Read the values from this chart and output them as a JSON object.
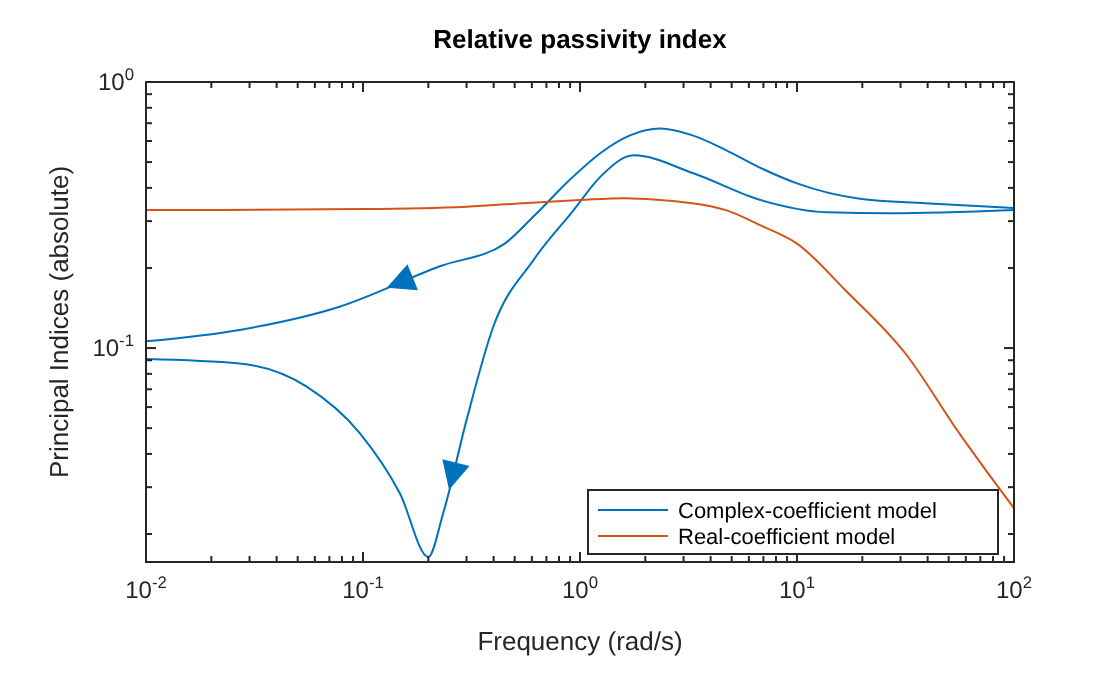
{
  "chart_data": {
    "type": "line",
    "title": "Relative passivity index",
    "xlabel": "Frequency (rad/s)",
    "ylabel": "Principal Indices (absolute)",
    "log": "xy",
    "grid": false,
    "legend": "bottom right",
    "line_style": "solid",
    "xlim": [
      0.01,
      100
    ],
    "ylim": [
      0.0157,
      1
    ],
    "xticks": [
      {
        "value": 0.01,
        "label": "10$^{-2}$"
      },
      {
        "value": 0.02,
        "label": null
      },
      {
        "value": 0.03,
        "label": null
      },
      {
        "value": 0.04,
        "label": null
      },
      {
        "value": 0.05,
        "label": null
      },
      {
        "value": 0.06,
        "label": null
      },
      {
        "value": 0.07,
        "label": null
      },
      {
        "value": 0.08,
        "label": null
      },
      {
        "value": 0.09,
        "label": null
      },
      {
        "value": 0.1,
        "label": "10$^{-1}$"
      },
      {
        "value": 0.2,
        "label": null
      },
      {
        "value": 0.3,
        "label": null
      },
      {
        "value": 0.4,
        "label": null
      },
      {
        "value": 0.5,
        "label": null
      },
      {
        "value": 0.6,
        "label": null
      },
      {
        "value": 0.7,
        "label": null
      },
      {
        "value": 0.8,
        "label": null
      },
      {
        "value": 0.9,
        "label": null
      },
      {
        "value": 1,
        "label": "10$^{0}$"
      },
      {
        "value": 2,
        "label": null
      },
      {
        "value": 3,
        "label": null
      },
      {
        "value": 4,
        "label": null
      },
      {
        "value": 5,
        "label": null
      },
      {
        "value": 6,
        "label": null
      },
      {
        "value": 7,
        "label": null
      },
      {
        "value": 8,
        "label": null
      },
      {
        "value": 9,
        "label": null
      },
      {
        "value": 10,
        "label": "10$^{1}$"
      },
      {
        "value": 20,
        "label": null
      },
      {
        "value": 30,
        "label": null
      },
      {
        "value": 40,
        "label": null
      },
      {
        "value": 50,
        "label": null
      },
      {
        "value": 60,
        "label": null
      },
      {
        "value": 70,
        "label": null
      },
      {
        "value": 80,
        "label": null
      },
      {
        "value": 90,
        "label": null
      },
      {
        "value": 100,
        "label": "10$^{2}$"
      }
    ],
    "yticks": [
      {
        "value": 0.02,
        "label": null
      },
      {
        "value": 0.03,
        "label": null
      },
      {
        "value": 0.04,
        "label": null
      },
      {
        "value": 0.05,
        "label": null
      },
      {
        "value": 0.06,
        "label": null
      },
      {
        "value": 0.07,
        "label": null
      },
      {
        "value": 0.08,
        "label": null
      },
      {
        "value": 0.09,
        "label": null
      },
      {
        "value": 0.1,
        "label": "10$^{-1}$"
      },
      {
        "value": 0.2,
        "label": null
      },
      {
        "value": 0.3,
        "label": null
      },
      {
        "value": 0.4,
        "label": null
      },
      {
        "value": 0.5,
        "label": null
      },
      {
        "value": 0.6,
        "label": null
      },
      {
        "value": 0.7,
        "label": null
      },
      {
        "value": 0.8,
        "label": null
      },
      {
        "value": 0.9,
        "label": null
      },
      {
        "value": 1,
        "label": "10$^{0}$"
      }
    ],
    "series": [
      {
        "name": "Complex-coefficient model",
        "color": "#0072bd",
        "x": [
          0.01,
          0.027,
          0.078,
          0.226,
          0.45,
          0.61,
          0.9,
          1.24,
          1.7,
          2.34,
          3.3,
          4.7,
          7,
          10,
          19.5,
          39,
          100
        ],
        "values": [
          0.106,
          0.117,
          0.143,
          0.203,
          0.247,
          0.312,
          0.43,
          0.54,
          0.63,
          0.668,
          0.63,
          0.555,
          0.47,
          0.416,
          0.364,
          0.35,
          0.336
        ]
      },
      {
        "color": "#0072bd",
        "x": [
          0.01,
          0.027,
          0.055,
          0.0968,
          0.148,
          0.2,
          0.234,
          0.3,
          0.398,
          0.61,
          0.935,
          1.24,
          1.77,
          3.33,
          6.8,
          13.7,
          27,
          100
        ],
        "values": [
          0.091,
          0.0875,
          0.0716,
          0.0478,
          0.0284,
          0.0164,
          0.0239,
          0.0536,
          0.12,
          0.214,
          0.33,
          0.44,
          0.53,
          0.454,
          0.36,
          0.324,
          0.321,
          0.33
        ]
      },
      {
        "name": "Real-coefficient model",
        "color": "#d95319",
        "x": [
          0.01,
          0.1,
          0.3,
          0.6,
          1,
          1.6,
          2.34,
          4.7,
          6.8,
          10,
          16.7,
          31.6,
          56,
          100
        ],
        "values": [
          0.33,
          0.333,
          0.34,
          0.352,
          0.36,
          0.366,
          0.36,
          0.33,
          0.289,
          0.247,
          0.165,
          0.0954,
          0.0478,
          0.025
        ]
      }
    ]
  }
}
